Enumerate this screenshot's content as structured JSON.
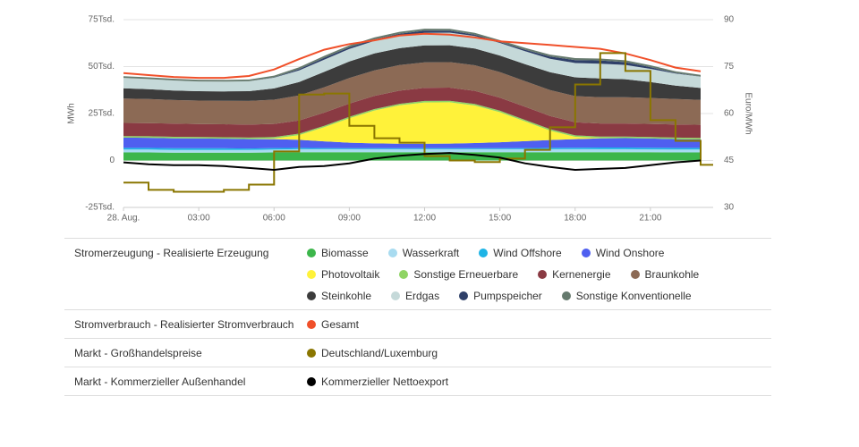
{
  "chart_data": {
    "type": "area",
    "x": [
      0,
      1,
      2,
      3,
      4,
      5,
      6,
      7,
      8,
      9,
      10,
      11,
      12,
      13,
      14,
      15,
      16,
      17,
      18,
      19,
      20,
      21,
      22,
      23
    ],
    "xlim": [
      0,
      23.5
    ],
    "xticks": [
      {
        "value": 0,
        "label": "28. Aug."
      },
      {
        "value": 3,
        "label": "03:00"
      },
      {
        "value": 6,
        "label": "06:00"
      },
      {
        "value": 9,
        "label": "09:00"
      },
      {
        "value": 12,
        "label": "12:00"
      },
      {
        "value": 15,
        "label": "15:00"
      },
      {
        "value": 18,
        "label": "18:00"
      },
      {
        "value": 21,
        "label": "21:00"
      }
    ],
    "ylim": [
      -25000,
      75000
    ],
    "yticks": [
      {
        "value": -25000,
        "label": "-25Tsd."
      },
      0,
      {
        "value": 25000,
        "label": "25Tsd."
      },
      {
        "value": 50000,
        "label": "50Tsd."
      },
      {
        "value": 75000,
        "label": "75Tsd."
      }
    ],
    "y2lim": [
      30,
      90
    ],
    "y2ticks": [
      30,
      45,
      60,
      75,
      90
    ],
    "ylabel": "MWh",
    "y2label": "Euro/MWh",
    "grid": true,
    "groups": [
      {
        "name": "Stromerzeugung - Realisierte Erzeugung",
        "series": [
          {
            "name": "Biomasse",
            "type": "area",
            "color": "#3cb64b",
            "values": [
              4300,
              4300,
              4200,
              4200,
              4200,
              4200,
              4300,
              4400,
              4400,
              4400,
              4400,
              4400,
              4400,
              4400,
              4400,
              4400,
              4400,
              4400,
              4400,
              4400,
              4400,
              4400,
              4300,
              4300
            ]
          },
          {
            "name": "Wasserkraft",
            "type": "area",
            "color": "#a8dbf0",
            "values": [
              1500,
              1500,
              1400,
              1400,
              1400,
              1400,
              1500,
              1600,
              1600,
              1600,
              1600,
              1600,
              1600,
              1600,
              1600,
              1600,
              1600,
              1600,
              1600,
              1600,
              1600,
              1500,
              1500,
              1500
            ]
          },
          {
            "name": "Wind Offshore",
            "type": "area",
            "color": "#1eb4e6",
            "values": [
              900,
              900,
              900,
              900,
              900,
              800,
              800,
              700,
              600,
              500,
              500,
              500,
              500,
              500,
              500,
              500,
              600,
              700,
              800,
              900,
              900,
              900,
              900,
              900
            ]
          },
          {
            "name": "Wind Onshore",
            "type": "area",
            "color": "#4f5ff0",
            "values": [
              5500,
              5400,
              5300,
              5200,
              5100,
              5000,
              4800,
              4300,
              3600,
              3000,
              2600,
              2400,
              2400,
              2500,
              2800,
              3200,
              3700,
              4200,
              4600,
              4900,
              5000,
              4900,
              4700,
              4500
            ]
          },
          {
            "name": "Photovoltaik",
            "type": "area",
            "color": "#fff23a",
            "values": [
              0,
              0,
              0,
              0,
              0,
              0,
              300,
              2500,
              7500,
              13000,
              17500,
              20500,
              22000,
              22000,
              20000,
              16000,
              10500,
              5000,
              1200,
              100,
              0,
              0,
              0,
              0
            ]
          },
          {
            "name": "Sonstige Erneuerbare",
            "type": "area",
            "color": "#8fd464",
            "values": [
              800,
              800,
              800,
              800,
              800,
              800,
              800,
              800,
              800,
              800,
              800,
              800,
              800,
              800,
              800,
              800,
              800,
              800,
              800,
              800,
              800,
              800,
              800,
              800
            ]
          },
          {
            "name": "Kernenergie",
            "type": "area",
            "color": "#8a3a43",
            "values": [
              7000,
              7000,
              7000,
              6900,
              6900,
              6900,
              7000,
              7000,
              7000,
              7000,
              7000,
              7000,
              7000,
              7000,
              7000,
              7000,
              7000,
              7000,
              7000,
              7000,
              7000,
              7000,
              7000,
              7000
            ]
          },
          {
            "name": "Braunkohle",
            "type": "area",
            "color": "#8c6a55",
            "values": [
              13000,
              12800,
              12600,
              12500,
              12500,
              12600,
              12900,
              13300,
              13500,
              13600,
              13600,
              13600,
              13600,
              13600,
              13600,
              13600,
              13700,
              13800,
              13900,
              14000,
              14000,
              13800,
              13500,
              13300
            ]
          },
          {
            "name": "Steinkohle",
            "type": "area",
            "color": "#3c3c3c",
            "values": [
              5500,
              5300,
              5100,
              5000,
              5000,
              5200,
              6000,
              7200,
              8200,
              8800,
              9000,
              9000,
              9000,
              9000,
              8900,
              8800,
              9000,
              9500,
              10000,
              10000,
              9600,
              8500,
              7200,
              6300
            ]
          },
          {
            "name": "Erdgas",
            "type": "area",
            "color": "#c5d9d9",
            "values": [
              5500,
              5400,
              5300,
              5200,
              5200,
              5300,
              5700,
              6200,
              6500,
              6700,
              6700,
              6700,
              6700,
              6700,
              6700,
              6700,
              6900,
              7200,
              7600,
              7800,
              7600,
              7000,
              6400,
              6000
            ]
          },
          {
            "name": "Pumpspeicher",
            "type": "area",
            "color": "#2f4069",
            "values": [
              0,
              0,
              0,
              0,
              0,
              0,
              200,
              600,
              1000,
              900,
              800,
              1000,
              1200,
              1000,
              700,
              500,
              800,
              1200,
              1600,
              1800,
              1500,
              900,
              300,
              100
            ]
          },
          {
            "name": "Sonstige Konventionelle",
            "type": "area",
            "color": "#667a6e",
            "values": [
              900,
              900,
              900,
              900,
              900,
              900,
              900,
              1000,
              1000,
              1000,
              1000,
              1000,
              1000,
              1000,
              1000,
              1000,
              1000,
              1000,
              1000,
              1000,
              1000,
              1000,
              900,
              900
            ]
          }
        ]
      },
      {
        "name": "Stromverbrauch - Realisierter Stromverbrauch",
        "series": [
          {
            "name": "Gesamt",
            "type": "line",
            "color": "#f0502a",
            "values": [
              46500,
              45500,
              44500,
              44000,
              44000,
              45000,
              48500,
              54000,
              59000,
              62000,
              64000,
              66500,
              67500,
              67000,
              65500,
              63500,
              62500,
              61500,
              60500,
              59500,
              57000,
              53500,
              49500,
              47500
            ]
          }
        ]
      },
      {
        "name": "Markt - Großhandelspreise",
        "series": [
          {
            "name": "Deutschland/Luxemburg",
            "type": "step",
            "axis": "y2",
            "color": "#8a7600",
            "values": [
              37.9,
              35.6,
              35,
              35,
              35.6,
              37.3,
              47.9,
              66.1,
              66.4,
              56.1,
              52.1,
              50.7,
              46.4,
              45,
              44.5,
              45.6,
              48.4,
              55.6,
              69.3,
              79.3,
              73.6,
              57.9,
              51.3,
              43.6
            ]
          }
        ]
      },
      {
        "name": "Markt - Kommerzieller Außenhandel",
        "series": [
          {
            "name": "Kommerzieller Nettoexport",
            "type": "line",
            "color": "#000000",
            "values": [
              -1000,
              -2000,
              -2500,
              -2500,
              -3000,
              -4000,
              -5000,
              -3500,
              -3000,
              -1500,
              1000,
              2500,
              3500,
              4000,
              3000,
              1500,
              -1500,
              -3500,
              -5000,
              -4500,
              -4000,
              -2500,
              -1000,
              0
            ]
          }
        ]
      }
    ]
  }
}
